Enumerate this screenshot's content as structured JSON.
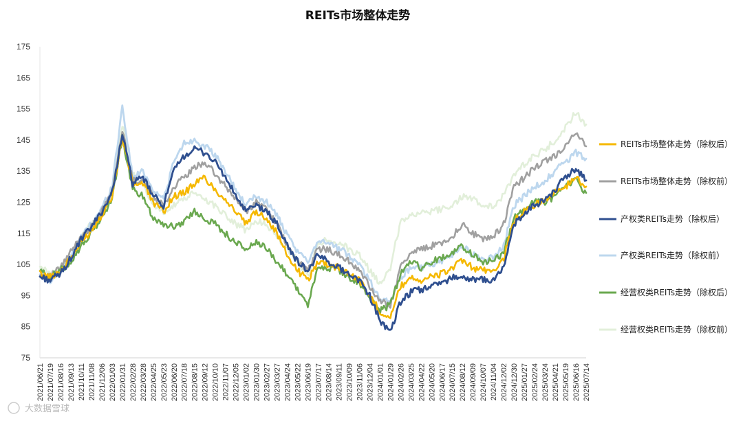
{
  "chart_data": {
    "type": "line",
    "title": "REITs市场整体走势",
    "xlabel": "",
    "ylabel": "",
    "ylim": [
      75,
      175
    ],
    "yticks": [
      75,
      85,
      95,
      105,
      115,
      125,
      135,
      145,
      155,
      165,
      175
    ],
    "grid": false,
    "legend_position": "right",
    "x_tick_labels": [
      "2021/06/21",
      "2021/07/19",
      "2021/08/16",
      "2021/09/13",
      "2021/10/11",
      "2021/11/08",
      "2021/12/06",
      "2022/01/03",
      "2022/01/31",
      "2022/02/28",
      "2022/03/28",
      "2022/04/25",
      "2022/05/23",
      "2022/06/20",
      "2022/07/18",
      "2022/08/15",
      "2022/09/12",
      "2022/10/10",
      "2022/11/07",
      "2022/12/05",
      "2023/01/02",
      "2023/01/30",
      "2023/02/27",
      "2023/03/27",
      "2023/04/24",
      "2023/05/22",
      "2023/06/19",
      "2023/07/17",
      "2023/08/14",
      "2023/09/11",
      "2023/10/09",
      "2023/11/06",
      "2023/12/04",
      "2024/01/01",
      "2024/01/29",
      "2024/02/26",
      "2024/03/25",
      "2024/04/22",
      "2024/05/20",
      "2024/06/17",
      "2024/07/15",
      "2024/08/12",
      "2024/09/09",
      "2024/10/07",
      "2024/11/04",
      "2024/12/02",
      "2024/12/30",
      "2025/01/27",
      "2025/02/24",
      "2025/03/24",
      "2025/04/21",
      "2025/05/19",
      "2025/06/16",
      "2025/07/14"
    ],
    "series": [
      {
        "name": "REITs市场整体走势（除权后）",
        "color": "#F5B800",
        "width": 2.6,
        "values": [
          102,
          101,
          103,
          107,
          112,
          116,
          121,
          127,
          146,
          131,
          131,
          125,
          122,
          127,
          128,
          131,
          133,
          129,
          126,
          122,
          118,
          122,
          120,
          115,
          108,
          103,
          100,
          106,
          105,
          104,
          102,
          100,
          95,
          90,
          88,
          98,
          101,
          100,
          101,
          102,
          104,
          106,
          104,
          103,
          103,
          107,
          119,
          122,
          124,
          126,
          128,
          130,
          133,
          130
        ]
      },
      {
        "name": "REITs市场整体走势（除权前）",
        "color": "#A0A0A0",
        "width": 2.6,
        "values": [
          102,
          101,
          104,
          109,
          114,
          117,
          122,
          128,
          148,
          132,
          132,
          127,
          124,
          130,
          133,
          136,
          138,
          134,
          130,
          126,
          122,
          125,
          123,
          118,
          111,
          106,
          103,
          110,
          110,
          108,
          106,
          103,
          98,
          93,
          92,
          104,
          109,
          110,
          111,
          112,
          114,
          118,
          115,
          113,
          114,
          118,
          130,
          133,
          136,
          138,
          140,
          143,
          147,
          143
        ]
      },
      {
        "name": "产权类REITs走势（除权后）",
        "color": "#2F4F8F",
        "width": 2.8,
        "values": [
          101,
          100,
          102,
          107,
          113,
          117,
          122,
          128,
          147,
          131,
          133,
          127,
          124,
          135,
          140,
          142,
          141,
          138,
          133,
          127,
          122,
          124,
          122,
          118,
          111,
          106,
          103,
          108,
          106,
          104,
          102,
          100,
          95,
          87,
          83,
          93,
          96,
          97,
          98,
          99,
          101,
          101,
          100,
          100,
          100,
          104,
          118,
          121,
          124,
          126,
          129,
          133,
          136,
          132
        ]
      },
      {
        "name": "产权类REITs走势（除权前）",
        "color": "#BDD7EE",
        "width": 2.8,
        "values": [
          102,
          100,
          103,
          108,
          114,
          118,
          123,
          130,
          156,
          133,
          135,
          129,
          126,
          138,
          144,
          145,
          143,
          140,
          135,
          129,
          124,
          127,
          125,
          121,
          114,
          109,
          106,
          113,
          112,
          110,
          108,
          105,
          100,
          94,
          93,
          101,
          104,
          104,
          105,
          106,
          108,
          111,
          108,
          107,
          107,
          111,
          124,
          127,
          130,
          132,
          135,
          138,
          141,
          139
        ]
      },
      {
        "name": "经营权类REITs走势（除权后）",
        "color": "#6AA84F",
        "width": 2.6,
        "values": [
          103,
          101,
          103,
          106,
          111,
          115,
          120,
          126,
          146,
          129,
          127,
          120,
          118,
          117,
          119,
          122,
          120,
          118,
          115,
          112,
          110,
          112,
          110,
          106,
          102,
          97,
          92,
          104,
          104,
          103,
          101,
          99,
          94,
          90,
          92,
          102,
          106,
          104,
          106,
          107,
          109,
          111,
          108,
          106,
          106,
          109,
          120,
          123,
          125,
          125,
          127,
          130,
          132,
          128
        ]
      },
      {
        "name": "经营权类REITs走势（除权前）",
        "color": "#E2EFDA",
        "width": 2.6,
        "values": [
          104,
          102,
          104,
          108,
          114,
          118,
          122,
          128,
          150,
          134,
          131,
          124,
          122,
          124,
          126,
          128,
          126,
          124,
          121,
          118,
          116,
          119,
          118,
          114,
          110,
          106,
          101,
          112,
          113,
          112,
          110,
          108,
          103,
          99,
          104,
          119,
          121,
          122,
          122,
          123,
          124,
          127,
          126,
          124,
          124,
          127,
          134,
          137,
          140,
          142,
          145,
          149,
          154,
          150
        ]
      }
    ]
  },
  "watermark": "大数据雪球"
}
